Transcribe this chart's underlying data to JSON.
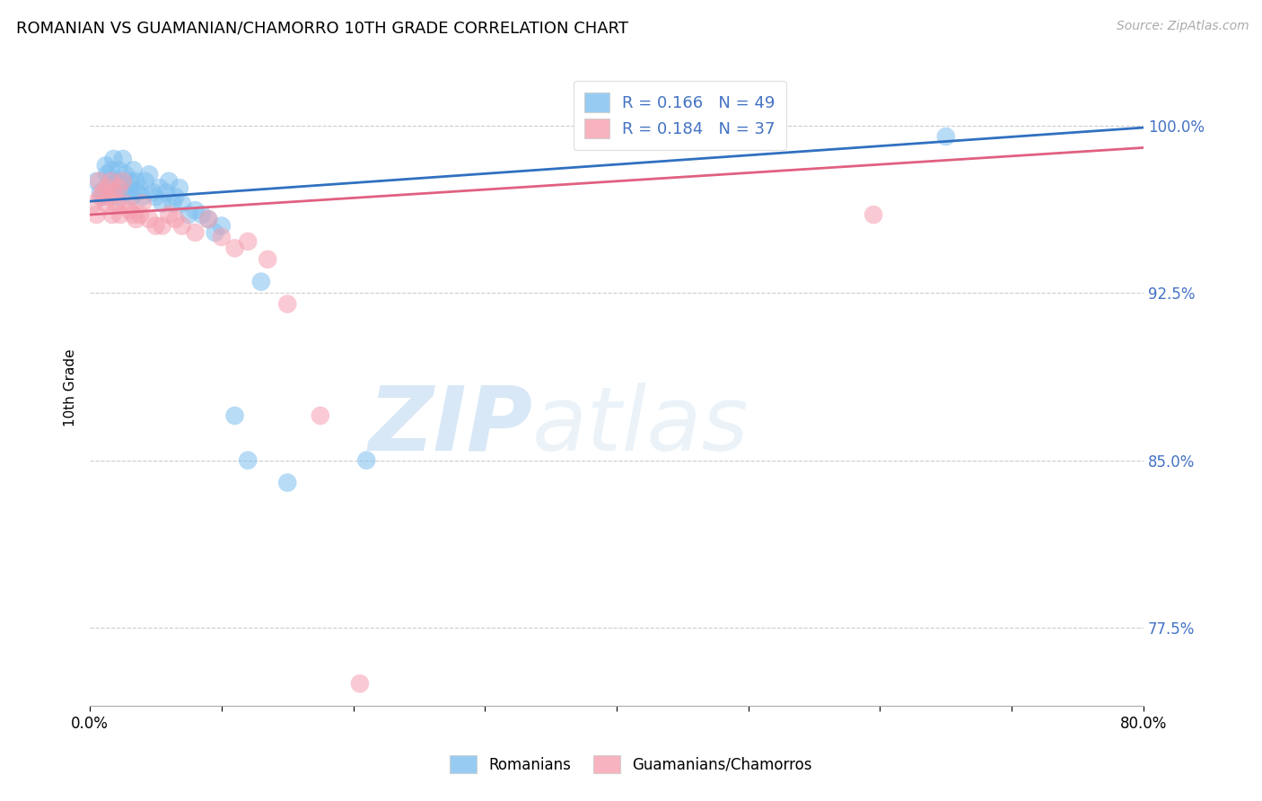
{
  "title": "ROMANIAN VS GUAMANIAN/CHAMORRO 10TH GRADE CORRELATION CHART",
  "source": "Source: ZipAtlas.com",
  "ylabel": "10th Grade",
  "xlim": [
    0.0,
    0.8
  ],
  "ylim": [
    0.74,
    1.025
  ],
  "blue_color": "#7fbfef",
  "pink_color": "#f5a0b0",
  "blue_line_color": "#3070c0",
  "pink_line_color": "#e06080",
  "legend_label_blue": "Romanians",
  "legend_label_pink": "Guamanians/Chamorros",
  "blue_points_x": [
    0.005,
    0.008,
    0.01,
    0.012,
    0.013,
    0.015,
    0.016,
    0.017,
    0.018,
    0.02,
    0.021,
    0.022,
    0.023,
    0.025,
    0.026,
    0.027,
    0.028,
    0.03,
    0.031,
    0.032,
    0.033,
    0.035,
    0.036,
    0.038,
    0.04,
    0.042,
    0.045,
    0.048,
    0.05,
    0.053,
    0.055,
    0.058,
    0.06,
    0.063,
    0.065,
    0.068,
    0.07,
    0.075,
    0.08,
    0.085,
    0.09,
    0.095,
    0.1,
    0.11,
    0.12,
    0.13,
    0.15,
    0.21,
    0.65
  ],
  "blue_points_y": [
    0.975,
    0.97,
    0.968,
    0.982,
    0.978,
    0.975,
    0.98,
    0.972,
    0.985,
    0.975,
    0.968,
    0.98,
    0.975,
    0.985,
    0.972,
    0.978,
    0.97,
    0.972,
    0.975,
    0.968,
    0.98,
    0.975,
    0.97,
    0.972,
    0.968,
    0.975,
    0.978,
    0.97,
    0.968,
    0.972,
    0.965,
    0.97,
    0.975,
    0.965,
    0.968,
    0.972,
    0.965,
    0.96,
    0.962,
    0.96,
    0.958,
    0.952,
    0.955,
    0.87,
    0.85,
    0.93,
    0.84,
    0.85,
    0.995
  ],
  "pink_points_x": [
    0.003,
    0.005,
    0.007,
    0.008,
    0.01,
    0.012,
    0.013,
    0.015,
    0.016,
    0.017,
    0.018,
    0.02,
    0.022,
    0.023,
    0.025,
    0.027,
    0.03,
    0.033,
    0.035,
    0.038,
    0.04,
    0.045,
    0.05,
    0.055,
    0.06,
    0.065,
    0.07,
    0.08,
    0.09,
    0.1,
    0.11,
    0.12,
    0.135,
    0.15,
    0.175,
    0.205,
    0.595
  ],
  "pink_points_y": [
    0.965,
    0.96,
    0.975,
    0.968,
    0.97,
    0.965,
    0.972,
    0.968,
    0.975,
    0.96,
    0.97,
    0.965,
    0.972,
    0.96,
    0.975,
    0.965,
    0.962,
    0.96,
    0.958,
    0.96,
    0.965,
    0.958,
    0.955,
    0.955,
    0.96,
    0.958,
    0.955,
    0.952,
    0.958,
    0.95,
    0.945,
    0.948,
    0.94,
    0.92,
    0.87,
    0.75,
    0.96
  ],
  "blue_line_x0": 0.0,
  "blue_line_y0": 0.966,
  "blue_line_x1": 0.8,
  "blue_line_y1": 0.999,
  "pink_line_x0": 0.0,
  "pink_line_y0": 0.96,
  "pink_line_x1": 0.8,
  "pink_line_y1": 0.99
}
